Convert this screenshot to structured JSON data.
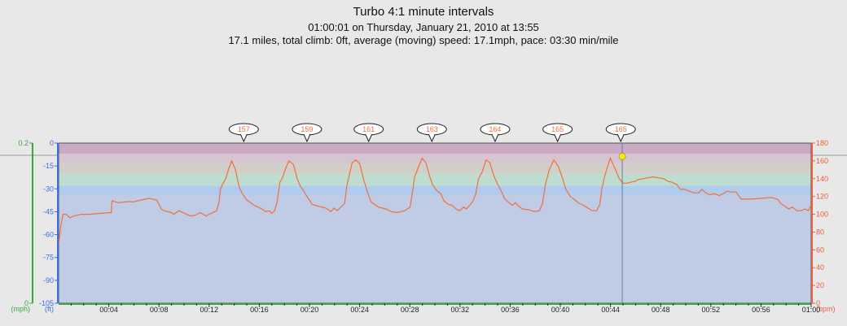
{
  "header": {
    "title": "Turbo 4:1 minute intervals",
    "subtitle": "01:00:01 on Thursday, January 21, 2010 at 13:55",
    "stats": "17.1 miles, total climb: 0ft, average (moving) speed: 17.1mph, pace: 03:30 min/mile"
  },
  "colors": {
    "background": "#e8e8e8",
    "hr_line": "#f0703c",
    "hr_axis": "#e8603a",
    "altitude_axis": "#3b6fe0",
    "speed_axis": "#3aa83a",
    "zone1": "#c0cbe6",
    "zone2": "#afccee",
    "zone3": "#bfdcd0",
    "zone4": "#d0d0c8",
    "zone5": "#d6c4d0",
    "zone6": "#c9a9c4",
    "cursor_dot": "#f2e91a"
  },
  "chart_data": {
    "type": "line",
    "title": "Turbo 4:1 minute intervals",
    "x_ticks": [
      "00:04",
      "00:08",
      "00:12",
      "00:16",
      "00:20",
      "00:24",
      "00:28",
      "00:32",
      "00:36",
      "00:40",
      "00:44",
      "00:48",
      "00:52",
      "00:56",
      "01:00"
    ],
    "xlim_minutes": [
      0,
      60
    ],
    "speed_axis": {
      "unit": "(mph)",
      "ticks": [
        "0.2",
        "0"
      ],
      "ylim": [
        0,
        0.2
      ]
    },
    "altitude_axis": {
      "unit": "(ft)",
      "ticks": [
        "0",
        "-15",
        "-30",
        "-45",
        "-60",
        "-75",
        "-90",
        "-105"
      ],
      "ylim": [
        -105,
        0
      ]
    },
    "hr_axis": {
      "unit": "(bpm)",
      "ticks": [
        "180",
        "160",
        "140",
        "120",
        "100",
        "80",
        "60",
        "40",
        "20",
        "0"
      ],
      "ylim": [
        0,
        180
      ]
    },
    "hr_zones": [
      {
        "from": 0,
        "to": 122
      },
      {
        "from": 122,
        "to": 132
      },
      {
        "from": 132,
        "to": 145
      },
      {
        "from": 145,
        "to": 157
      },
      {
        "from": 157,
        "to": 168
      },
      {
        "from": 168,
        "to": 180
      }
    ],
    "series": [
      {
        "type": "heart_rate",
        "points": [
          [
            0.0,
            66
          ],
          [
            0.3,
            88
          ],
          [
            0.6,
            100
          ],
          [
            1.0,
            100
          ],
          [
            1.5,
            96
          ],
          [
            2.0,
            98
          ],
          [
            3.0,
            100
          ],
          [
            4.0,
            100
          ],
          [
            5.5,
            101
          ],
          [
            7.0,
            102
          ],
          [
            7.1,
            115
          ],
          [
            7.5,
            114
          ],
          [
            8.0,
            113
          ],
          [
            9.0,
            114
          ],
          [
            10.0,
            114
          ],
          [
            11.0,
            116
          ],
          [
            12.0,
            118
          ],
          [
            12.5,
            117
          ],
          [
            13.0,
            116
          ],
          [
            13.3,
            112
          ],
          [
            13.6,
            106
          ],
          [
            14.0,
            104
          ],
          [
            15.0,
            102
          ],
          [
            15.3,
            100
          ],
          [
            16.0,
            104
          ],
          [
            16.5,
            102
          ],
          [
            17.0,
            100
          ],
          [
            17.5,
            98
          ],
          [
            18.2,
            99
          ],
          [
            18.8,
            102
          ],
          [
            19.2,
            100
          ],
          [
            19.6,
            98
          ],
          [
            20.0,
            100
          ],
          [
            20.5,
            102
          ],
          [
            21.0,
            104
          ],
          [
            21.3,
            113
          ],
          [
            21.5,
            128
          ],
          [
            21.8,
            134
          ],
          [
            22.2,
            140
          ],
          [
            22.6,
            151
          ],
          [
            23.0,
            160
          ],
          [
            23.5,
            150
          ],
          [
            24.0,
            130
          ],
          [
            24.5,
            122
          ],
          [
            25.0,
            116
          ],
          [
            25.5,
            113
          ],
          [
            26.0,
            110
          ],
          [
            26.5,
            108
          ],
          [
            27.0,
            106
          ],
          [
            27.5,
            103
          ],
          [
            28.0,
            104
          ],
          [
            28.3,
            101
          ],
          [
            28.7,
            104
          ],
          [
            29.0,
            113
          ],
          [
            29.4,
            136
          ],
          [
            29.7,
            140
          ],
          [
            30.2,
            152
          ],
          [
            30.6,
            160
          ],
          [
            31.2,
            156
          ],
          [
            31.7,
            140
          ],
          [
            32.1,
            132
          ],
          [
            32.5,
            127
          ],
          [
            33.0,
            120
          ],
          [
            33.7,
            111
          ],
          [
            34.5,
            109
          ],
          [
            35.5,
            107
          ],
          [
            36.2,
            103
          ],
          [
            36.6,
            107
          ],
          [
            37.0,
            104
          ],
          [
            37.5,
            108
          ],
          [
            38.0,
            112
          ],
          [
            38.3,
            132
          ],
          [
            38.7,
            147
          ],
          [
            39.0,
            158
          ],
          [
            39.5,
            161
          ],
          [
            40.0,
            157
          ],
          [
            40.5,
            140
          ],
          [
            41.0,
            126
          ],
          [
            41.5,
            114
          ],
          [
            42.5,
            108
          ],
          [
            43.5,
            106
          ],
          [
            44.2,
            103
          ],
          [
            45.0,
            102
          ],
          [
            46.0,
            104
          ],
          [
            46.7,
            108
          ],
          [
            47.0,
            124
          ],
          [
            47.3,
            142
          ],
          [
            47.8,
            153
          ],
          [
            48.3,
            163
          ],
          [
            48.8,
            158
          ],
          [
            49.3,
            143
          ],
          [
            49.7,
            133
          ],
          [
            50.2,
            127
          ],
          [
            50.8,
            123
          ],
          [
            51.2,
            115
          ],
          [
            51.8,
            111
          ],
          [
            52.3,
            110
          ],
          [
            52.8,
            106
          ],
          [
            53.3,
            104
          ],
          [
            53.8,
            108
          ],
          [
            54.2,
            106
          ],
          [
            54.6,
            110
          ],
          [
            55.0,
            114
          ],
          [
            55.4,
            122
          ],
          [
            55.8,
            140
          ],
          [
            56.3,
            148
          ],
          [
            56.8,
            161
          ],
          [
            57.3,
            158
          ],
          [
            57.8,
            144
          ],
          [
            58.2,
            136
          ],
          [
            58.7,
            128
          ],
          [
            59.3,
            117
          ],
          [
            60.0,
            112
          ],
          [
            60.3,
            110
          ],
          [
            60.7,
            113
          ],
          [
            61.0,
            110
          ],
          [
            61.6,
            106
          ],
          [
            62.5,
            105
          ],
          [
            63.2,
            103
          ],
          [
            63.9,
            104
          ],
          [
            64.3,
            112
          ],
          [
            64.7,
            134
          ],
          [
            65.2,
            150
          ],
          [
            65.8,
            161
          ],
          [
            66.4,
            154
          ],
          [
            66.9,
            142
          ],
          [
            67.4,
            128
          ],
          [
            68.0,
            120
          ],
          [
            68.6,
            116
          ],
          [
            69.2,
            112
          ],
          [
            69.8,
            110
          ],
          [
            70.3,
            107
          ],
          [
            70.9,
            104
          ],
          [
            71.5,
            104
          ],
          [
            71.9,
            111
          ],
          [
            72.2,
            129
          ],
          [
            72.6,
            144
          ],
          [
            73.0,
            155
          ],
          [
            73.3,
            163
          ],
          [
            73.9,
            152
          ],
          [
            74.5,
            140
          ],
          [
            75.0,
            135
          ],
          [
            75.5,
            135
          ],
          [
            76.0,
            136
          ],
          [
            76.6,
            137
          ],
          [
            77.0,
            139
          ],
          [
            77.7,
            140
          ],
          [
            78.3,
            141
          ],
          [
            79.0,
            142
          ],
          [
            79.7,
            141
          ],
          [
            80.4,
            140
          ],
          [
            81.0,
            137
          ],
          [
            81.5,
            136
          ],
          [
            82.2,
            133
          ],
          [
            82.6,
            128
          ],
          [
            83.2,
            128
          ],
          [
            83.8,
            126
          ],
          [
            84.4,
            124
          ],
          [
            85.0,
            124
          ],
          [
            85.5,
            128
          ],
          [
            86.0,
            124
          ],
          [
            86.5,
            122
          ],
          [
            87.2,
            123
          ],
          [
            87.8,
            121
          ],
          [
            88.3,
            123
          ],
          [
            88.8,
            126
          ],
          [
            89.3,
            125
          ],
          [
            90.0,
            125
          ],
          [
            90.7,
            117
          ],
          [
            92.0,
            117
          ],
          [
            93.5,
            118
          ],
          [
            94.7,
            119
          ],
          [
            95.5,
            117
          ],
          [
            96.0,
            112
          ],
          [
            96.5,
            109
          ],
          [
            97.0,
            106
          ],
          [
            97.5,
            108
          ],
          [
            98.1,
            104
          ],
          [
            98.7,
            104
          ],
          [
            99.2,
            106
          ],
          [
            99.6,
            104
          ],
          [
            100.0,
            110
          ]
        ]
      }
    ],
    "x_scale_note": "hr points x in percent of plot width",
    "hr_peak_labels": [
      {
        "label": "157",
        "x_percent": 24.6
      },
      {
        "label": "159",
        "x_percent": 33.0
      },
      {
        "label": "161",
        "x_percent": 41.2
      },
      {
        "label": "163",
        "x_percent": 49.6
      },
      {
        "label": "164",
        "x_percent": 58.0
      },
      {
        "label": "165",
        "x_percent": 66.3
      },
      {
        "label": "165",
        "x_percent": 74.7
      }
    ],
    "cursor": {
      "x_percent": 74.9,
      "hr": 165
    },
    "grid": false
  }
}
